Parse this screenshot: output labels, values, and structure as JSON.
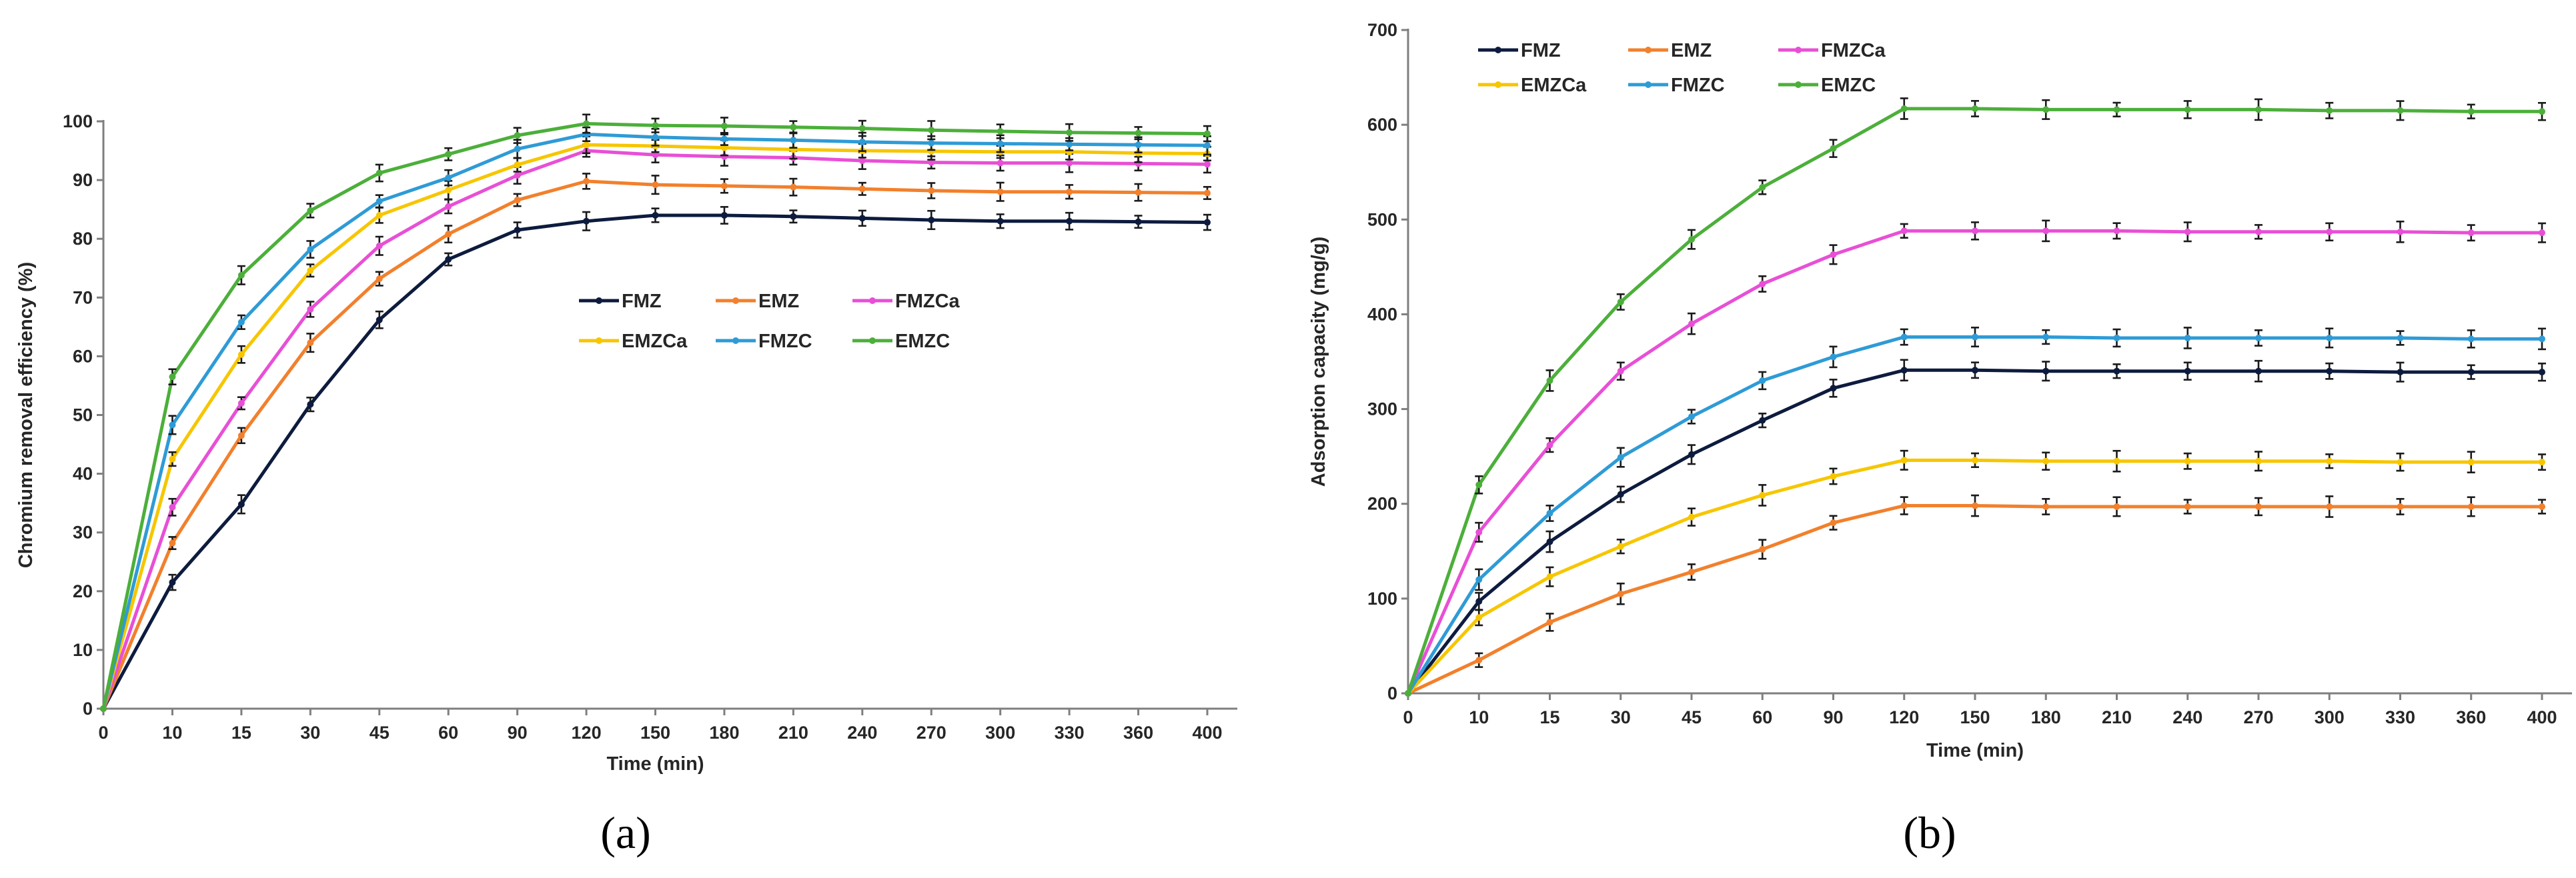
{
  "colors": {
    "FMZ": "#0d1b3e",
    "EMZ": "#f2802c",
    "FMZCa": "#e84fd6",
    "EMZCa": "#f7c600",
    "FMZC": "#2e9bd6",
    "EMZC": "#4caf3a"
  },
  "chart_data": [
    {
      "type": "line",
      "panel_label": "(a)",
      "title": "",
      "xlabel": "Time (min)",
      "ylabel": "Chromium removal efficiency (%)",
      "categories": [
        "0",
        "10",
        "15",
        "30",
        "45",
        "60",
        "90",
        "120",
        "150",
        "180",
        "210",
        "240",
        "270",
        "300",
        "330",
        "360",
        "400"
      ],
      "ylim": [
        0,
        100
      ],
      "yticks": [
        0,
        10,
        20,
        30,
        40,
        50,
        60,
        70,
        80,
        90,
        100
      ],
      "legend_position": "center",
      "series": [
        {
          "name": "FMZ",
          "values": [
            0,
            21.5,
            34.8,
            51.8,
            66.2,
            76.5,
            81.5,
            83.0,
            84.0,
            84.0,
            83.8,
            83.5,
            83.2,
            83.0,
            83.0,
            82.9,
            82.8
          ]
        },
        {
          "name": "EMZ",
          "values": [
            0,
            28.2,
            46.5,
            62.3,
            73.2,
            80.8,
            86.6,
            89.8,
            89.2,
            89.0,
            88.8,
            88.5,
            88.2,
            88.0,
            88.0,
            87.9,
            87.8
          ]
        },
        {
          "name": "FMZCa",
          "values": [
            0,
            34.3,
            52.0,
            68.0,
            78.8,
            85.5,
            90.8,
            95.0,
            94.3,
            94.0,
            93.8,
            93.3,
            93.0,
            92.9,
            92.9,
            92.8,
            92.7
          ]
        },
        {
          "name": "EMZCa",
          "values": [
            0,
            42.5,
            60.3,
            74.6,
            84.0,
            88.3,
            92.6,
            96.0,
            95.8,
            95.5,
            95.2,
            95.0,
            94.9,
            94.8,
            94.8,
            94.6,
            94.5
          ]
        },
        {
          "name": "FMZC",
          "values": [
            0,
            48.3,
            65.8,
            78.2,
            86.4,
            90.4,
            95.3,
            97.8,
            97.3,
            97.0,
            96.8,
            96.5,
            96.3,
            96.2,
            96.1,
            96.0,
            95.9
          ]
        },
        {
          "name": "EMZC",
          "values": [
            0,
            56.5,
            73.8,
            84.8,
            91.2,
            94.4,
            97.6,
            99.6,
            99.3,
            99.2,
            99.0,
            98.8,
            98.5,
            98.3,
            98.1,
            98.0,
            97.9
          ]
        }
      ]
    },
    {
      "type": "line",
      "panel_label": "(b)",
      "title": "",
      "xlabel": "Time (min)",
      "ylabel": "Adsorption capacity  (mg/g)",
      "categories": [
        "0",
        "10",
        "15",
        "30",
        "45",
        "60",
        "90",
        "120",
        "150",
        "180",
        "210",
        "240",
        "270",
        "300",
        "330",
        "360",
        "400"
      ],
      "ylim": [
        0,
        700
      ],
      "yticks": [
        0,
        100,
        200,
        300,
        400,
        500,
        600,
        700
      ],
      "legend_position": "top-left",
      "series": [
        {
          "name": "FMZ",
          "values": [
            0,
            97,
            160,
            210,
            252,
            288,
            322,
            341,
            341,
            340,
            340,
            340,
            340,
            340,
            339,
            339,
            339
          ]
        },
        {
          "name": "EMZ",
          "values": [
            0,
            35,
            75,
            105,
            128,
            152,
            180,
            198,
            198,
            197,
            197,
            197,
            197,
            197,
            197,
            197,
            197
          ]
        },
        {
          "name": "FMZCa",
          "values": [
            0,
            170,
            262,
            340,
            390,
            432,
            463,
            488,
            488,
            488,
            488,
            487,
            487,
            487,
            487,
            486,
            486
          ]
        },
        {
          "name": "EMZCa",
          "values": [
            0,
            80,
            123,
            155,
            186,
            209,
            229,
            246,
            246,
            245,
            245,
            245,
            245,
            245,
            244,
            244,
            244
          ]
        },
        {
          "name": "FMZC",
          "values": [
            0,
            120,
            190,
            249,
            292,
            330,
            355,
            376,
            376,
            376,
            375,
            375,
            375,
            375,
            375,
            374,
            374
          ]
        },
        {
          "name": "EMZC",
          "values": [
            0,
            220,
            330,
            413,
            479,
            534,
            575,
            617,
            617,
            616,
            616,
            616,
            616,
            615,
            615,
            614,
            614
          ]
        }
      ]
    }
  ]
}
